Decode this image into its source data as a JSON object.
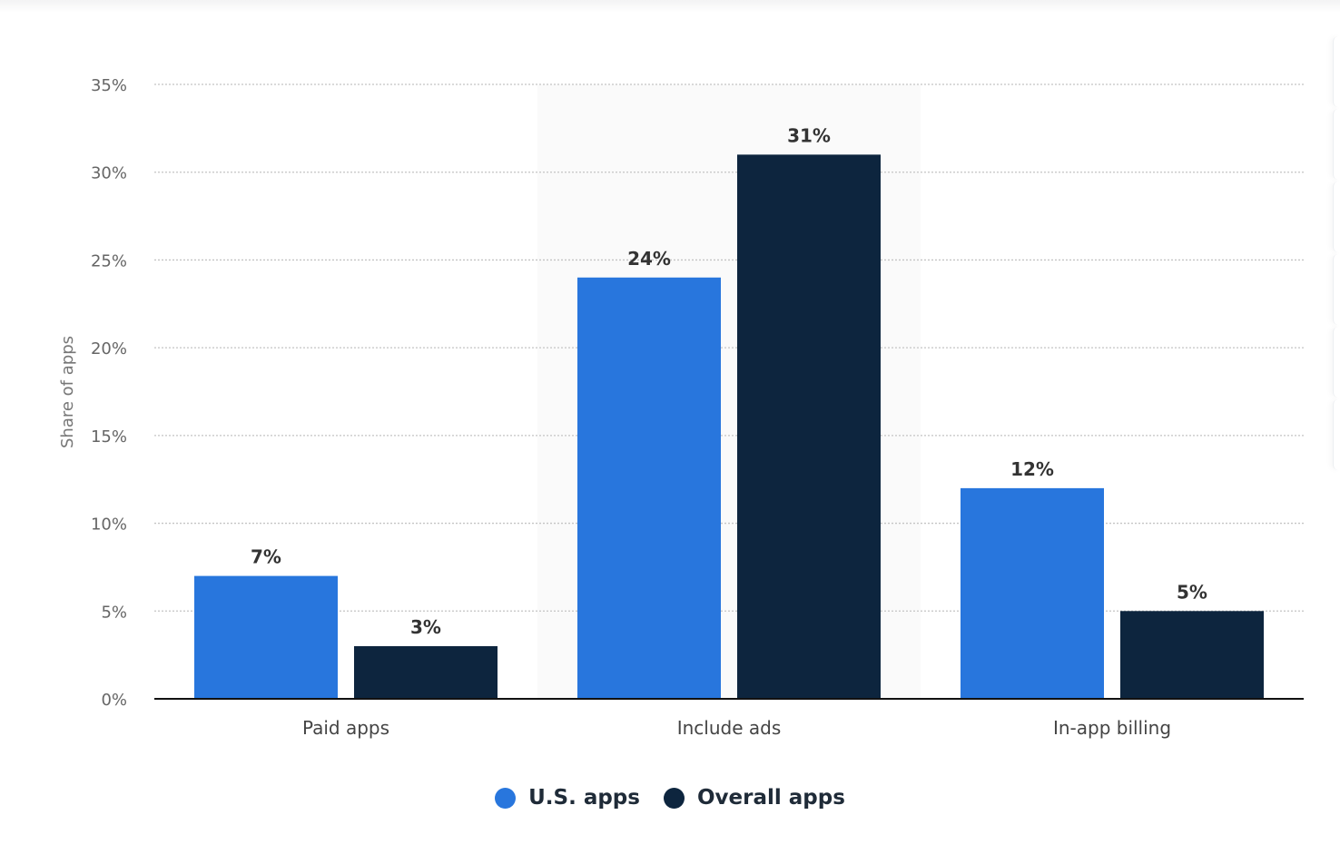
{
  "chart_data": {
    "type": "bar",
    "title": "",
    "xlabel": "",
    "ylabel": "Share of apps",
    "ylim": [
      0,
      35
    ],
    "yticks": [
      "0%",
      "5%",
      "10%",
      "15%",
      "20%",
      "25%",
      "30%",
      "35%"
    ],
    "ytick_values": [
      0,
      5,
      10,
      15,
      20,
      25,
      30,
      35
    ],
    "grid": true,
    "legend_position": "bottom",
    "categories": [
      "Paid apps",
      "Include ads",
      "In-app billing"
    ],
    "highlighted_category": "Include ads",
    "series": [
      {
        "name": "U.S. apps",
        "color": "#2876dd",
        "values": [
          7,
          24,
          12
        ],
        "labels": [
          "7%",
          "24%",
          "12%"
        ]
      },
      {
        "name": "Overall apps",
        "color": "#0d253e",
        "values": [
          3,
          31,
          5
        ],
        "labels": [
          "3%",
          "31%",
          "5%"
        ]
      }
    ]
  }
}
